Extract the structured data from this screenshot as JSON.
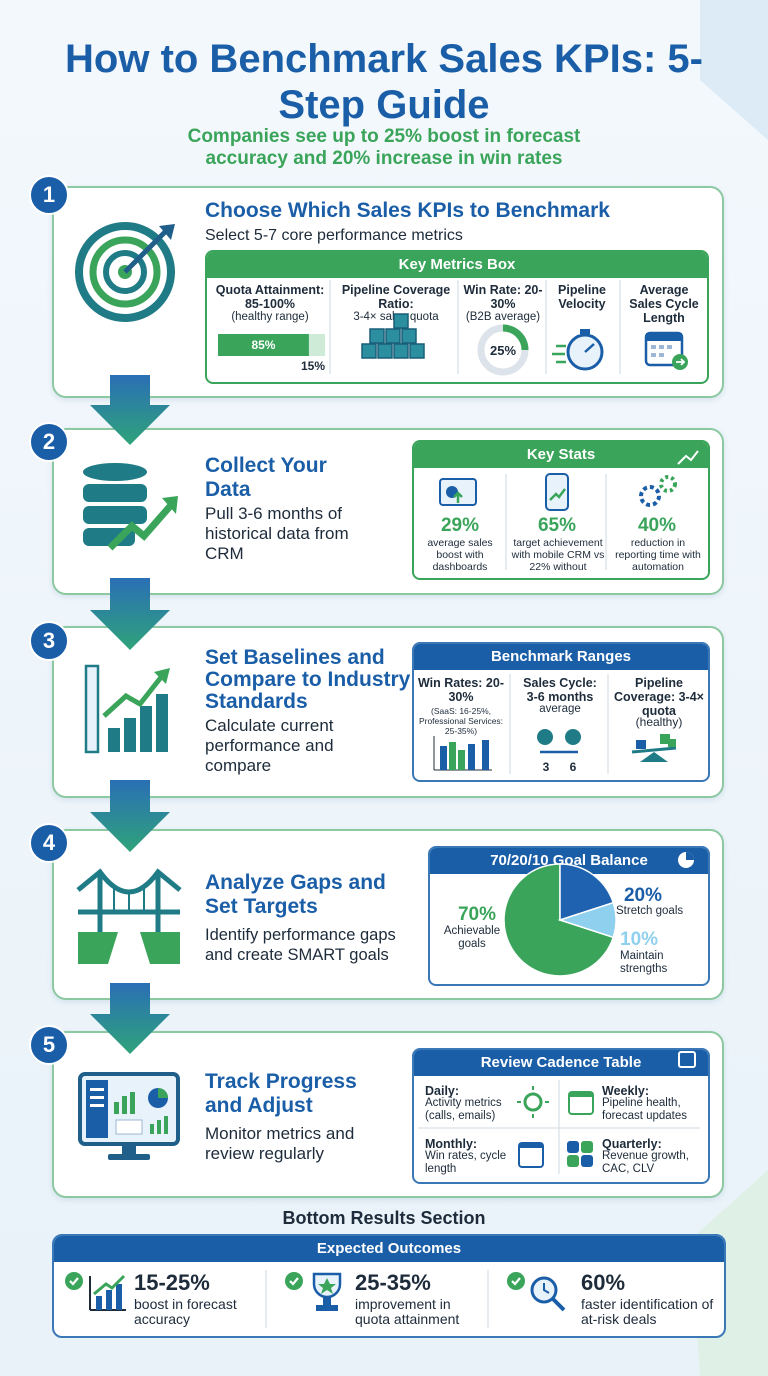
{
  "header": {
    "title": "How to Benchmark Sales KPIs: 5-Step Guide",
    "subtitle": "Companies see up to 25% boost in forecast accuracy and 20% increase in win rates"
  },
  "steps": [
    {
      "number": 1,
      "title": "Choose Which Sales KPIs to Benchmark",
      "description": "Select 5-7 core performance metrics",
      "panel": {
        "title": "Key Metrics Box",
        "metrics": [
          {
            "label": "Quota Attainment: 85-100%",
            "note": "(healthy range)",
            "chart": {
              "type": "bar",
              "values": [
                85,
                15
              ],
              "value_labels": [
                "85%",
                "15%"
              ],
              "colors": [
                "#3aa55a",
                "#cdebd6"
              ]
            }
          },
          {
            "label": "Pipeline Coverage Ratio:",
            "note": "3-4× sales quota"
          },
          {
            "label": "Win Rate: 20-30%",
            "note": "(B2B average)",
            "chart": {
              "type": "donut",
              "value": 25,
              "value_label": "25%",
              "color": "#3aa55a"
            }
          },
          {
            "label": "Pipeline Velocity"
          },
          {
            "label": "Average Sales Cycle Length"
          }
        ]
      }
    },
    {
      "number": 2,
      "title": "Collect Your Data",
      "description": "Pull 3-6 months of historical data from CRM",
      "panel": {
        "title": "Key Stats",
        "stats": [
          {
            "value": "29%",
            "label": "average sales boost with dashboards"
          },
          {
            "value": "65%",
            "label": "target achievement with mobile CRM vs 22% without"
          },
          {
            "value": "40%",
            "label": "reduction in reporting time with automation"
          }
        ]
      }
    },
    {
      "number": 3,
      "title": "Set Baselines and Compare to Industry Standards",
      "description": "Calculate current performance and compare",
      "panel": {
        "title": "Benchmark Ranges",
        "ranges": [
          {
            "label": "Win Rates: 20-30%",
            "note": "(SaaS: 16-25%, Professional Services: 25-35%)"
          },
          {
            "label": "Sales Cycle: 3-6 months",
            "note": "average",
            "ends": [
              "3",
              "6"
            ]
          },
          {
            "label": "Pipeline Coverage: 3-4× quota",
            "note": "(healthy)"
          }
        ]
      }
    },
    {
      "number": 4,
      "title": "Analyze Gaps and Set Targets",
      "description": "Identify performance gaps and create SMART goals",
      "panel": {
        "chart": {
          "type": "pie",
          "title": "70/20/10 Goal Balance",
          "labels": [
            "Achievable goals",
            "Stretch goals",
            "Maintain strengths"
          ],
          "values": [
            70,
            20,
            10
          ],
          "value_labels": [
            "70%",
            "20%",
            "10%"
          ],
          "colors": [
            "#3aa55a",
            "#1f63b0",
            "#8fd0ee"
          ]
        }
      }
    },
    {
      "number": 5,
      "title": "Track Progress and Adjust",
      "description": "Monitor metrics and review regularly",
      "panel": {
        "title": "Review Cadence Table",
        "rows": [
          {
            "period": "Daily:",
            "items": "Activity metrics (calls, emails)"
          },
          {
            "period": "Weekly:",
            "items": "Pipeline health, forecast updates"
          },
          {
            "period": "Monthly:",
            "items": "Win rates, cycle length"
          },
          {
            "period": "Quarterly:",
            "items": "Revenue growth, CAC, CLV"
          }
        ]
      }
    }
  ],
  "results": {
    "section_title": "Bottom Results Section",
    "title": "Expected Outcomes",
    "outcomes": [
      {
        "value": "15-25%",
        "label": "boost in forecast accuracy"
      },
      {
        "value": "25-35%",
        "label": "improvement in quota attainment"
      },
      {
        "value": "60%",
        "label": "faster identification of at-risk deals"
      }
    ]
  }
}
